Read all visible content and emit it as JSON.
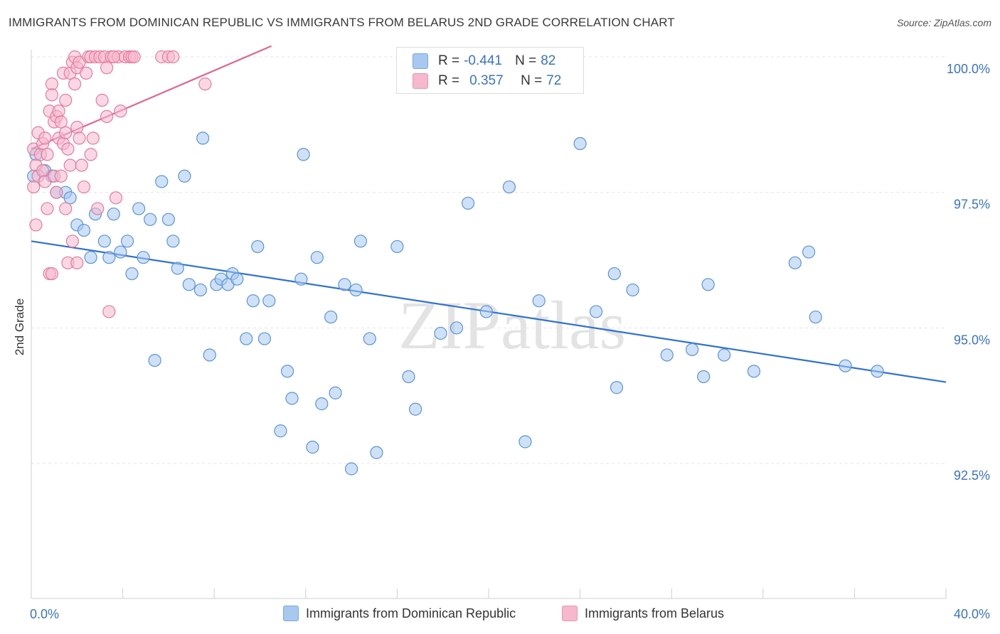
{
  "title": "IMMIGRANTS FROM DOMINICAN REPUBLIC VS IMMIGRANTS FROM BELARUS 2ND GRADE CORRELATION CHART",
  "source": "Source: ZipAtlas.com",
  "watermark": "ZIPatlas",
  "legend": {
    "rows": [
      {
        "r_label": "R =",
        "r_value": "-0.441",
        "n_label": "N =",
        "n_value": "82",
        "color": "#a8c8f0"
      },
      {
        "r_label": "R =",
        "r_value": "0.357",
        "n_label": "N =",
        "n_value": "72",
        "color": "#f5b8cc"
      }
    ]
  },
  "bottom_legend": [
    {
      "label": "Immigrants from Dominican Republic",
      "color": "#a8c8f0"
    },
    {
      "label": "Immigrants from Belarus",
      "color": "#f5b8cc"
    }
  ],
  "chart_data": {
    "type": "scatter",
    "title": "IMMIGRANTS FROM DOMINICAN REPUBLIC VS IMMIGRANTS FROM BELARUS 2ND GRADE CORRELATION CHART",
    "ylabel": "2nd Grade",
    "xlabel": "",
    "xlim": [
      0,
      40
    ],
    "ylim": [
      90.0,
      100.3
    ],
    "x_tick_labels": [
      {
        "value": 0,
        "label": "0.0%"
      },
      {
        "value": 40,
        "label": "40.0%"
      }
    ],
    "y_tick_labels": [
      {
        "value": 100.0,
        "label": "100.0%"
      },
      {
        "value": 97.5,
        "label": "97.5%"
      },
      {
        "value": 95.0,
        "label": "95.0%"
      },
      {
        "value": 92.5,
        "label": "92.5%"
      }
    ],
    "grid": true,
    "series": [
      {
        "name": "Immigrants from Dominican Republic",
        "color": "#5b93d8",
        "fill": "#a8c8f0",
        "trend": {
          "x": [
            0,
            40
          ],
          "y": [
            96.6,
            94.0
          ]
        },
        "points": [
          [
            0.1,
            97.8
          ],
          [
            0.2,
            98.2
          ],
          [
            0.6,
            97.9
          ],
          [
            0.9,
            97.8
          ],
          [
            1.1,
            97.5
          ],
          [
            1.5,
            97.5
          ],
          [
            1.7,
            97.4
          ],
          [
            2.0,
            96.9
          ],
          [
            2.3,
            96.8
          ],
          [
            2.6,
            96.3
          ],
          [
            2.8,
            97.1
          ],
          [
            3.2,
            96.6
          ],
          [
            3.4,
            96.3
          ],
          [
            3.6,
            97.1
          ],
          [
            3.9,
            96.4
          ],
          [
            4.2,
            96.6
          ],
          [
            4.4,
            96.0
          ],
          [
            4.7,
            97.2
          ],
          [
            4.9,
            96.3
          ],
          [
            5.2,
            97.0
          ],
          [
            5.4,
            94.4
          ],
          [
            5.7,
            97.7
          ],
          [
            6.0,
            97.0
          ],
          [
            6.2,
            96.6
          ],
          [
            6.4,
            96.1
          ],
          [
            6.7,
            97.8
          ],
          [
            6.9,
            95.8
          ],
          [
            7.4,
            95.7
          ],
          [
            7.5,
            98.5
          ],
          [
            7.8,
            94.5
          ],
          [
            8.1,
            95.8
          ],
          [
            8.3,
            95.9
          ],
          [
            8.6,
            95.8
          ],
          [
            8.8,
            96.0
          ],
          [
            9.0,
            95.9
          ],
          [
            9.4,
            94.8
          ],
          [
            9.7,
            95.5
          ],
          [
            9.9,
            96.5
          ],
          [
            10.2,
            94.8
          ],
          [
            10.4,
            95.5
          ],
          [
            10.9,
            93.1
          ],
          [
            11.2,
            94.2
          ],
          [
            11.4,
            93.7
          ],
          [
            11.8,
            95.9
          ],
          [
            11.9,
            98.2
          ],
          [
            12.3,
            92.8
          ],
          [
            12.5,
            96.3
          ],
          [
            12.7,
            93.6
          ],
          [
            13.1,
            95.2
          ],
          [
            13.3,
            93.8
          ],
          [
            13.7,
            95.8
          ],
          [
            14.0,
            92.4
          ],
          [
            14.2,
            95.7
          ],
          [
            14.4,
            96.6
          ],
          [
            14.8,
            94.8
          ],
          [
            15.1,
            92.7
          ],
          [
            16.0,
            96.5
          ],
          [
            16.5,
            94.1
          ],
          [
            16.8,
            93.5
          ],
          [
            17.9,
            94.9
          ],
          [
            18.6,
            95.0
          ],
          [
            19.1,
            97.3
          ],
          [
            19.9,
            95.3
          ],
          [
            20.9,
            97.6
          ],
          [
            21.6,
            92.9
          ],
          [
            22.2,
            95.5
          ],
          [
            24.0,
            98.4
          ],
          [
            24.7,
            95.3
          ],
          [
            25.5,
            96.0
          ],
          [
            25.6,
            93.9
          ],
          [
            26.3,
            95.7
          ],
          [
            27.8,
            94.5
          ],
          [
            28.9,
            94.6
          ],
          [
            29.4,
            94.1
          ],
          [
            29.6,
            95.8
          ],
          [
            30.3,
            94.5
          ],
          [
            31.6,
            94.2
          ],
          [
            33.4,
            96.2
          ],
          [
            34.0,
            96.4
          ],
          [
            34.3,
            95.2
          ],
          [
            35.6,
            94.3
          ],
          [
            37.0,
            94.2
          ]
        ]
      },
      {
        "name": "Immigrants from Belarus",
        "color": "#e57a9d",
        "fill": "#f5b8cc",
        "trend": {
          "x": [
            0,
            10.5
          ],
          "y": [
            98.3,
            100.2
          ]
        },
        "points": [
          [
            0.1,
            97.6
          ],
          [
            0.1,
            98.3
          ],
          [
            0.2,
            96.9
          ],
          [
            0.2,
            98.0
          ],
          [
            0.3,
            98.6
          ],
          [
            0.3,
            97.8
          ],
          [
            0.4,
            98.2
          ],
          [
            0.5,
            98.4
          ],
          [
            0.5,
            97.9
          ],
          [
            0.6,
            98.5
          ],
          [
            0.6,
            97.7
          ],
          [
            0.7,
            97.2
          ],
          [
            0.7,
            98.2
          ],
          [
            0.8,
            99.0
          ],
          [
            0.8,
            96.0
          ],
          [
            0.9,
            99.5
          ],
          [
            0.9,
            99.3
          ],
          [
            1.0,
            98.8
          ],
          [
            1.0,
            97.8
          ],
          [
            1.1,
            98.9
          ],
          [
            1.1,
            97.5
          ],
          [
            1.2,
            99.0
          ],
          [
            1.2,
            98.5
          ],
          [
            1.3,
            98.8
          ],
          [
            1.3,
            97.8
          ],
          [
            1.4,
            99.7
          ],
          [
            1.4,
            98.4
          ],
          [
            1.5,
            98.6
          ],
          [
            1.5,
            97.2
          ],
          [
            1.6,
            98.3
          ],
          [
            1.6,
            96.2
          ],
          [
            1.7,
            99.7
          ],
          [
            1.7,
            98.0
          ],
          [
            1.8,
            99.9
          ],
          [
            1.8,
            96.6
          ],
          [
            1.9,
            100.0
          ],
          [
            1.9,
            99.5
          ],
          [
            2.0,
            99.8
          ],
          [
            2.0,
            98.7
          ],
          [
            2.1,
            99.9
          ],
          [
            2.1,
            98.5
          ],
          [
            2.2,
            98.0
          ],
          [
            2.3,
            97.6
          ],
          [
            2.4,
            99.7
          ],
          [
            2.5,
            100.0
          ],
          [
            2.6,
            98.2
          ],
          [
            2.6,
            100.0
          ],
          [
            2.7,
            98.5
          ],
          [
            2.8,
            100.0
          ],
          [
            2.9,
            97.2
          ],
          [
            3.0,
            100.0
          ],
          [
            3.1,
            99.2
          ],
          [
            3.2,
            100.0
          ],
          [
            3.3,
            98.9
          ],
          [
            3.3,
            99.8
          ],
          [
            3.5,
            100.0
          ],
          [
            3.7,
            97.4
          ],
          [
            3.8,
            100.0
          ],
          [
            4.1,
            100.0
          ],
          [
            3.6,
            100.0
          ],
          [
            3.4,
            95.3
          ],
          [
            3.9,
            99.0
          ],
          [
            4.3,
            100.0
          ],
          [
            4.4,
            100.0
          ],
          [
            4.5,
            100.0
          ],
          [
            5.7,
            100.0
          ],
          [
            6.0,
            100.0
          ],
          [
            6.2,
            100.0
          ],
          [
            7.6,
            99.5
          ],
          [
            2.0,
            96.2
          ],
          [
            0.9,
            96.0
          ],
          [
            1.5,
            99.2
          ]
        ]
      }
    ]
  }
}
